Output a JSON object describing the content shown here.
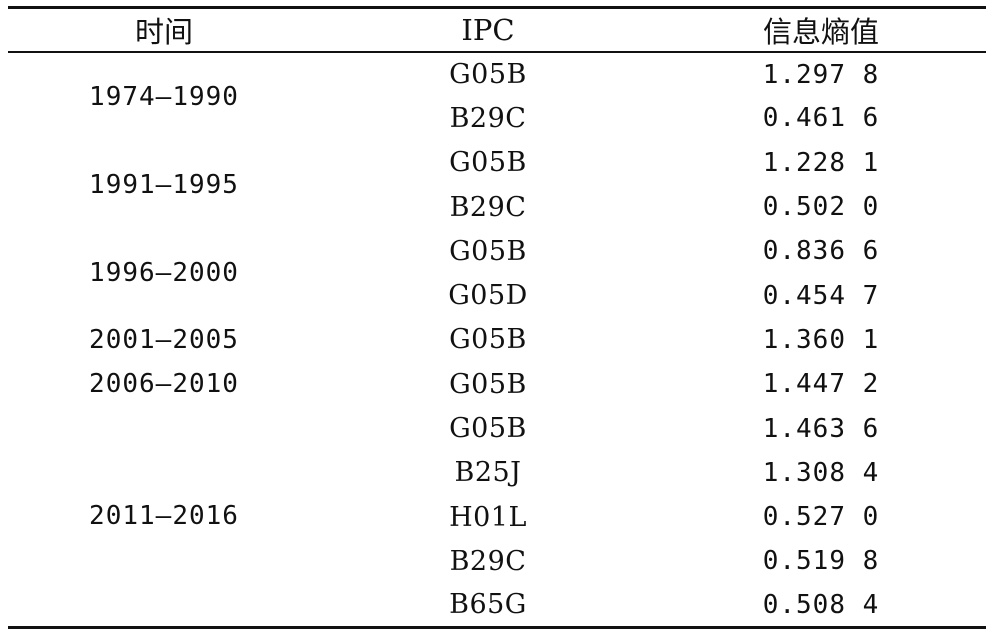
{
  "header": {
    "time": "时间",
    "ipc": "IPC",
    "entropy": "信息熵值"
  },
  "groups": [
    {
      "period": "1974—1990",
      "rows": [
        {
          "ipc": "G05B",
          "value": "1.297 8"
        },
        {
          "ipc": "B29C",
          "value": "0.461 6"
        }
      ]
    },
    {
      "period": "1991—1995",
      "rows": [
        {
          "ipc": "G05B",
          "value": "1.228 1"
        },
        {
          "ipc": "B29C",
          "value": "0.502 0"
        }
      ]
    },
    {
      "period": "1996—2000",
      "rows": [
        {
          "ipc": "G05B",
          "value": "0.836 6"
        },
        {
          "ipc": "G05D",
          "value": "0.454 7"
        }
      ]
    },
    {
      "period": "2001—2005",
      "rows": [
        {
          "ipc": "G05B",
          "value": "1.360 1"
        }
      ]
    },
    {
      "period": "2006—2010",
      "rows": [
        {
          "ipc": "G05B",
          "value": "1.447 2"
        }
      ]
    },
    {
      "period": "2011—2016",
      "rows": [
        {
          "ipc": "G05B",
          "value": "1.463 6"
        },
        {
          "ipc": "B25J",
          "value": "1.308 4"
        },
        {
          "ipc": "H01L",
          "value": "0.527 0"
        },
        {
          "ipc": "B29C",
          "value": "0.519 8"
        },
        {
          "ipc": "B65G",
          "value": "0.508 4"
        }
      ]
    }
  ]
}
